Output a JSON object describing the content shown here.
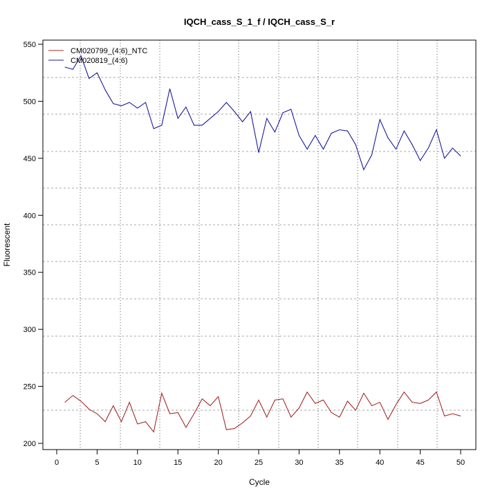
{
  "chart_data": {
    "type": "line",
    "title": "IQCH_cass_S_1_f / IQCH_cass_S_r",
    "xlabel": "Cycle",
    "ylabel": "Fluorescent",
    "xlim": [
      -1.7,
      51.7
    ],
    "ylim": [
      195,
      553
    ],
    "xticks": [
      0,
      5,
      10,
      15,
      20,
      25,
      30,
      35,
      40,
      45,
      50
    ],
    "yticks": [
      200,
      250,
      300,
      350,
      400,
      450,
      500,
      550
    ],
    "grid": true,
    "legend": "top-left",
    "x": [
      1,
      2,
      3,
      4,
      5,
      6,
      7,
      8,
      9,
      10,
      11,
      12,
      13,
      14,
      15,
      16,
      17,
      18,
      19,
      20,
      21,
      22,
      23,
      24,
      25,
      26,
      27,
      28,
      29,
      30,
      31,
      32,
      33,
      34,
      35,
      36,
      37,
      38,
      39,
      40,
      41,
      42,
      43,
      44,
      45,
      46,
      47,
      48,
      49,
      50
    ],
    "series": [
      {
        "name": "CM020799_(4:6)_NTC",
        "color": "#a52a2a",
        "values": [
          236,
          242,
          237,
          230,
          226,
          219,
          233,
          219,
          236,
          217,
          219,
          210,
          244,
          226,
          227,
          214,
          226,
          239,
          233,
          241,
          212,
          213,
          218,
          224,
          238,
          223,
          238,
          239,
          223,
          231,
          245,
          235,
          238,
          227,
          223,
          237,
          229,
          244,
          233,
          236,
          221,
          234,
          245,
          236,
          235,
          238,
          245,
          224,
          226,
          224
        ]
      },
      {
        "name": "CM020819_(4:6)",
        "color": "#1a1a9a",
        "values": [
          530,
          528,
          540,
          520,
          525,
          510,
          498,
          496,
          499,
          494,
          499,
          476,
          479,
          511,
          485,
          495,
          479,
          479,
          485,
          491,
          499,
          491,
          482,
          491,
          455,
          485,
          473,
          490,
          493,
          470,
          458,
          470,
          458,
          472,
          475,
          474,
          462,
          440,
          453,
          484,
          468,
          458,
          474,
          462,
          448,
          459,
          475,
          450,
          459,
          452
        ]
      }
    ]
  }
}
